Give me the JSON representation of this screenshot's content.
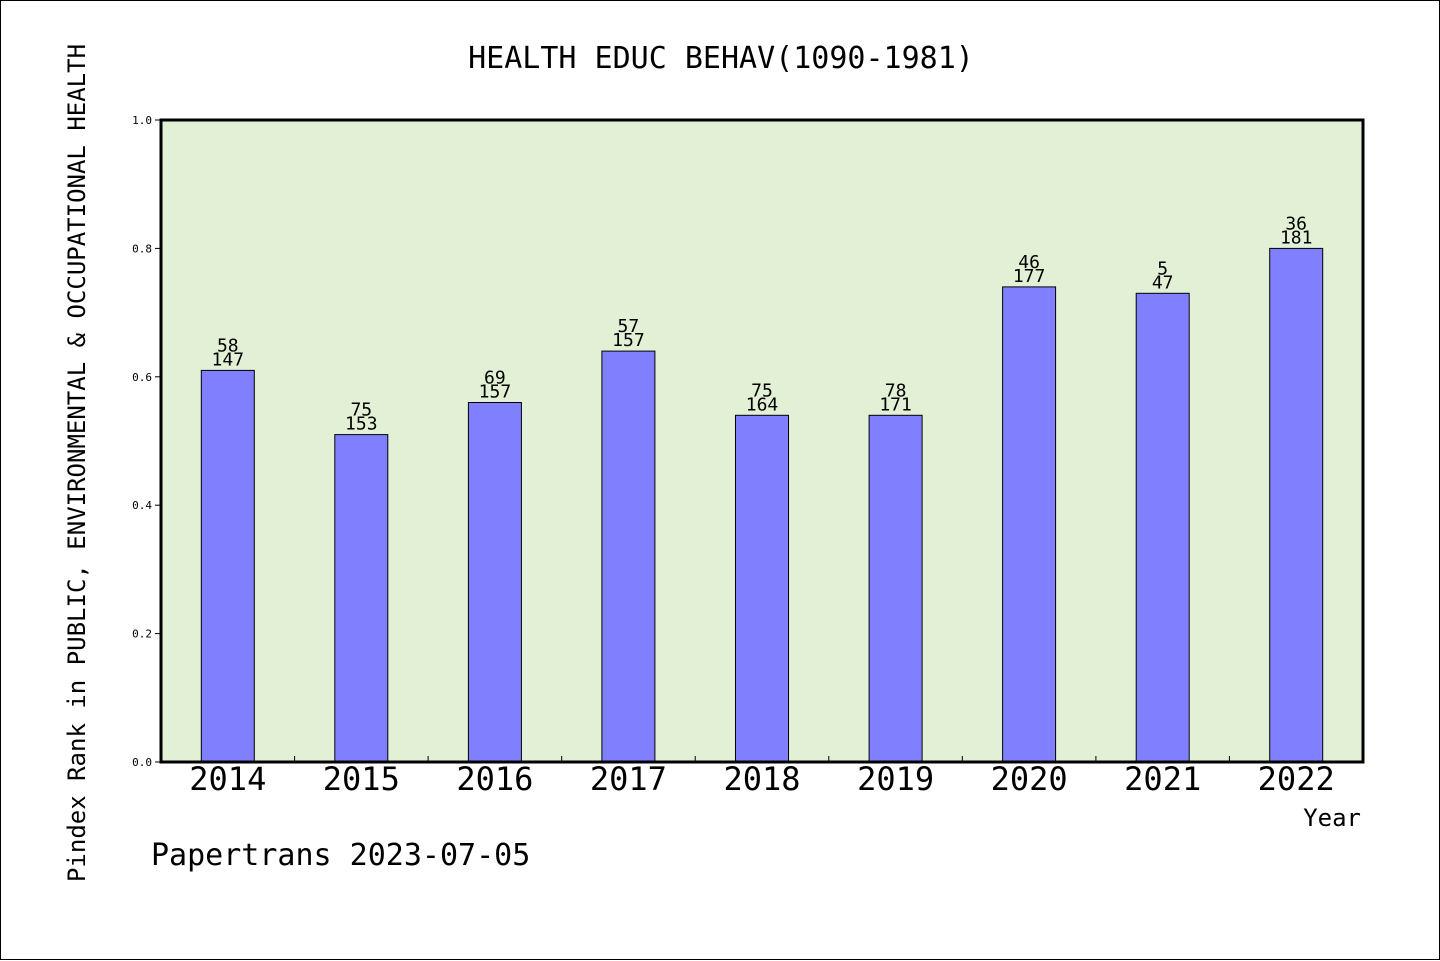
{
  "colors": {
    "plot_background": "#e2f0d6",
    "bar_fill": "#8080ff",
    "bar_stroke": "#000000",
    "axis": "#000000"
  },
  "footer": "Papertrans 2023-07-05",
  "chart_data": {
    "type": "bar",
    "title": "HEALTH EDUC BEHAV(1090-1981)",
    "xlabel": "Year",
    "ylabel": "Pindex Rank in PUBLIC, ENVIRONMENTAL & OCCUPATIONAL HEALTH",
    "ylim": [
      0,
      1.0
    ],
    "yticks": [
      "0.0",
      "0.2",
      "0.4",
      "0.6",
      "0.8",
      "1.0"
    ],
    "grid": false,
    "categories": [
      "2014",
      "2015",
      "2016",
      "2017",
      "2018",
      "2019",
      "2020",
      "2021",
      "2022"
    ],
    "values": [
      0.61,
      0.51,
      0.56,
      0.64,
      0.54,
      0.54,
      0.74,
      0.73,
      0.8
    ],
    "labels_top": [
      "58",
      "75",
      "69",
      "57",
      "75",
      "78",
      "46",
      "5",
      "36"
    ],
    "labels_bottom": [
      "147",
      "153",
      "157",
      "157",
      "164",
      "171",
      "177",
      "47",
      "181"
    ]
  }
}
